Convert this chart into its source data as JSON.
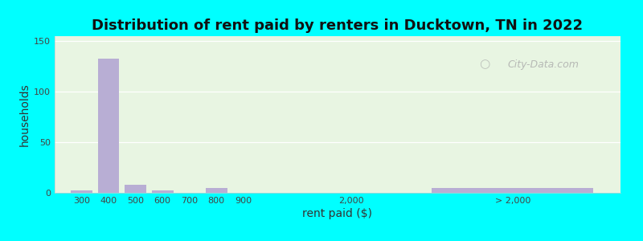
{
  "title": "Distribution of rent paid by renters in Ducktown, TN in 2022",
  "xlabel": "rent paid ($)",
  "ylabel": "households",
  "bar_labels": [
    "300",
    "400",
    "500",
    "600",
    "700",
    "800",
    "900",
    "2,000",
    "> 2,000"
  ],
  "bar_values": [
    2,
    133,
    8,
    2,
    0,
    5,
    0,
    0,
    5
  ],
  "bar_color": "#b8aed4",
  "bar_positions": [
    1,
    2,
    3,
    4,
    5,
    6,
    7,
    11,
    17
  ],
  "bar_widths": [
    0.8,
    0.8,
    0.8,
    0.8,
    0.8,
    0.8,
    0.8,
    0.8,
    6.0
  ],
  "xlim": [
    0,
    21
  ],
  "xtick_positions": [
    1,
    2,
    3,
    4,
    5,
    6,
    7,
    11,
    17
  ],
  "ylim": [
    0,
    155
  ],
  "yticks": [
    0,
    50,
    100,
    150
  ],
  "plot_bg": "#e8f5e2",
  "outer_bg": "#00ffff",
  "grid_color": "#ffffff",
  "title_fontsize": 13,
  "axis_label_fontsize": 10,
  "tick_fontsize": 8,
  "watermark_text": "City-Data.com"
}
